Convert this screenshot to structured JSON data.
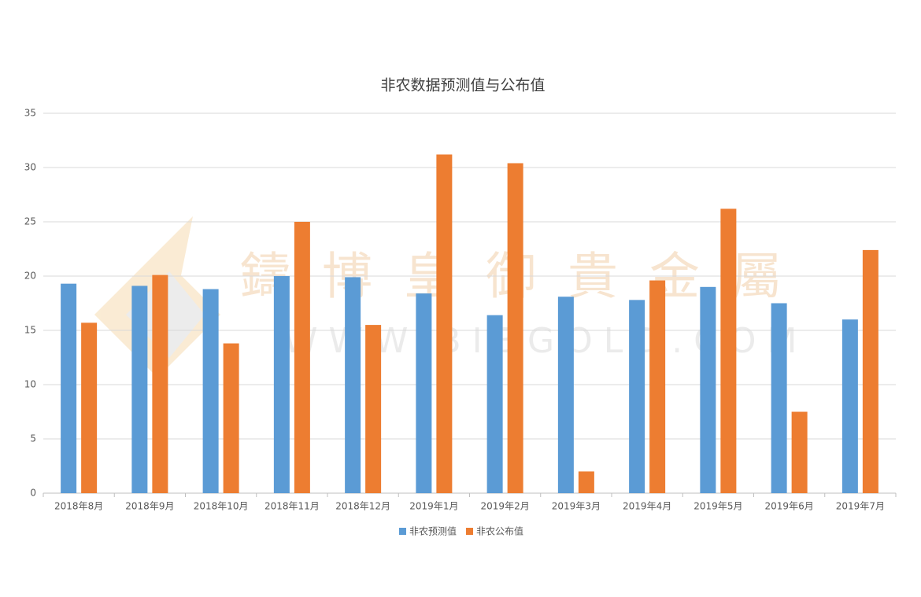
{
  "chart_data": {
    "type": "bar",
    "title": "非农数据预测值与公布值",
    "watermark": [
      "鑄博皇御貴金屬",
      "WWW.BIBGOLD.COM"
    ],
    "categories": [
      "2018年8月",
      "2018年9月",
      "2018年10月",
      "2018年11月",
      "2018年12月",
      "2019年1月",
      "2019年2月",
      "2019年3月",
      "2019年4月",
      "2019年5月",
      "2019年6月",
      "2019年7月"
    ],
    "series": [
      {
        "name": "非农预测值",
        "color": "#5b9bd5",
        "values": [
          19.3,
          19.1,
          18.8,
          20.0,
          19.9,
          18.4,
          16.4,
          18.1,
          17.8,
          19.0,
          17.5,
          16.0
        ]
      },
      {
        "name": "非农公布值",
        "color": "#ed7d31",
        "values": [
          15.7,
          20.1,
          13.8,
          25.0,
          15.5,
          31.2,
          30.4,
          2.0,
          19.6,
          26.2,
          7.5,
          22.4
        ]
      }
    ],
    "ylim": [
      0,
      35
    ],
    "yticks": [
      0,
      5,
      10,
      15,
      20,
      25,
      30,
      35
    ],
    "grid": true,
    "legend": "bottom"
  }
}
